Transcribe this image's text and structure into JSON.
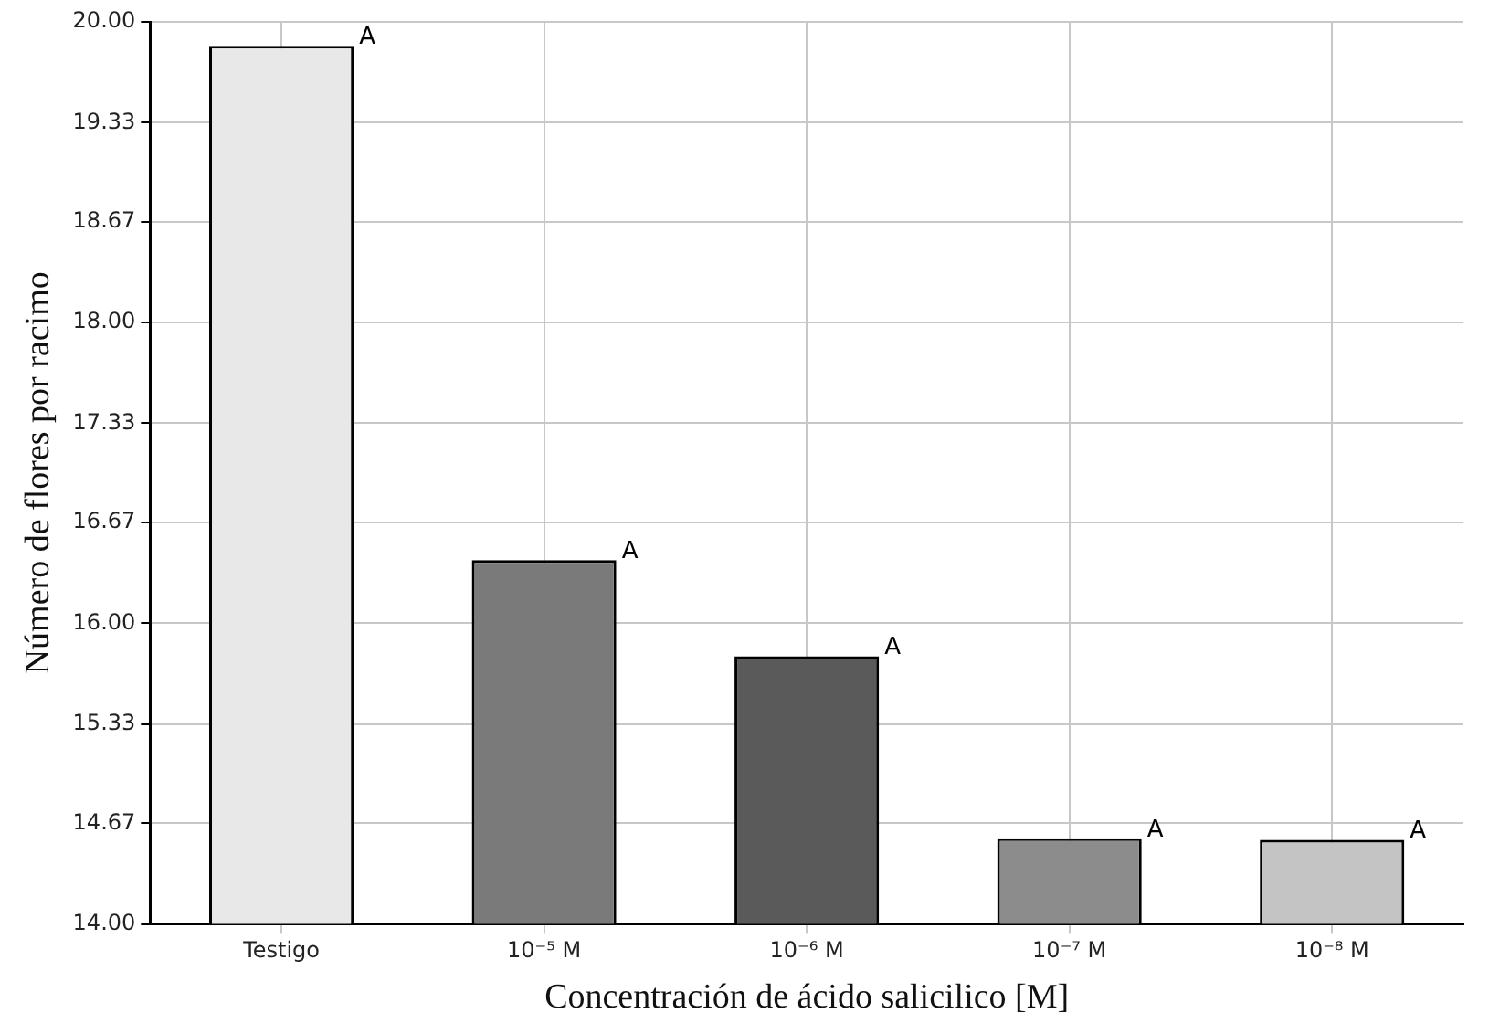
{
  "chart_data": {
    "type": "bar",
    "xlabel": "Concentración de ácido salicilico [M]",
    "ylabel": "Número de flores por racimo",
    "categories": [
      "Testigo",
      "10⁻⁵ M",
      "10⁻⁶ M",
      "10⁻⁷ M",
      "10⁻⁸ M"
    ],
    "values": [
      19.84,
      16.42,
      15.78,
      14.57,
      14.56
    ],
    "colors": [
      "#e8e8e8",
      "#7a7a7a",
      "#5a5a5a",
      "#8c8c8c",
      "#c4c4c4"
    ],
    "ylim": [
      14,
      20
    ],
    "yticks": [
      {
        "value": 14,
        "label": "14.00"
      },
      {
        "value": 14.67,
        "label": "14.67"
      },
      {
        "value": 15.33,
        "label": "15.33"
      },
      {
        "value": 16,
        "label": "16.00"
      },
      {
        "value": 16.67,
        "label": "16.67"
      },
      {
        "value": 17.33,
        "label": "17.33"
      },
      {
        "value": 18,
        "label": "18.00"
      },
      {
        "value": 18.67,
        "label": "18.67"
      },
      {
        "value": 19.33,
        "label": "19.33"
      },
      {
        "value": 20,
        "label": "20.00"
      }
    ],
    "grid": true,
    "legend": false,
    "annotations": [
      "A",
      "A",
      "A",
      "A",
      "A"
    ]
  }
}
